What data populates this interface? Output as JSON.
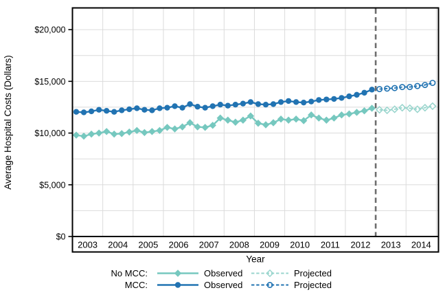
{
  "figure_title": "",
  "chart_data": {
    "type": "line",
    "title": "",
    "xlabel": "Year",
    "ylabel": "Average Hospital Costs (Dollars)",
    "x_categories": [
      "2003",
      "2004",
      "2005",
      "2006",
      "2007",
      "2008",
      "2009",
      "2010",
      "2011",
      "2012",
      "2013",
      "2014"
    ],
    "xlim": [
      2003,
      2015.07
    ],
    "ylim": [
      0,
      22100
    ],
    "y_ticks": [
      {
        "value": 0,
        "label": "$0"
      },
      {
        "value": 5000,
        "label": "$5,000"
      },
      {
        "value": 10000,
        "label": "$10,000"
      },
      {
        "value": 15000,
        "label": "$15,000"
      },
      {
        "value": 20000,
        "label": "$20,000"
      }
    ],
    "y_grid_step": 2500,
    "grid_on": true,
    "forecast_divider_x": 2013,
    "series": [
      {
        "id": "no_mcc_observed",
        "group": "No MCC",
        "phase": "Observed",
        "color": "#76C8BF",
        "line_style": "solid",
        "marker": "diamond",
        "marker_fill": "filled",
        "x": [
          2003.125,
          2003.375,
          2003.625,
          2003.875,
          2004.125,
          2004.375,
          2004.625,
          2004.875,
          2005.125,
          2005.375,
          2005.625,
          2005.875,
          2006.125,
          2006.375,
          2006.625,
          2006.875,
          2007.125,
          2007.375,
          2007.625,
          2007.875,
          2008.125,
          2008.375,
          2008.625,
          2008.875,
          2009.125,
          2009.375,
          2009.625,
          2009.875,
          2010.125,
          2010.375,
          2010.625,
          2010.875,
          2011.125,
          2011.375,
          2011.625,
          2011.875,
          2012.125,
          2012.375,
          2012.625,
          2012.875
        ],
        "y": [
          9800,
          9700,
          9900,
          10000,
          10150,
          9900,
          9950,
          10100,
          10250,
          10050,
          10150,
          10250,
          10550,
          10400,
          10600,
          11000,
          10600,
          10550,
          10750,
          11450,
          11250,
          11050,
          11250,
          11650,
          10950,
          10800,
          11000,
          11350,
          11250,
          11350,
          11200,
          11750,
          11450,
          11250,
          11450,
          11750,
          11850,
          12000,
          12150,
          12400
        ]
      },
      {
        "id": "no_mcc_projected",
        "group": "No MCC",
        "phase": "Projected",
        "color": "#99D5CD",
        "line_style": "dashed",
        "marker": "diamond",
        "marker_fill": "open",
        "x": [
          2013.125,
          2013.375,
          2013.625,
          2013.875,
          2014.125,
          2014.375,
          2014.625,
          2014.875
        ],
        "y": [
          12250,
          12200,
          12300,
          12450,
          12400,
          12300,
          12450,
          12600
        ]
      },
      {
        "id": "mcc_observed",
        "group": "MCC",
        "phase": "Observed",
        "color": "#2173B2",
        "line_style": "solid",
        "marker": "circle",
        "marker_fill": "filled",
        "x": [
          2003.125,
          2003.375,
          2003.625,
          2003.875,
          2004.125,
          2004.375,
          2004.625,
          2004.875,
          2005.125,
          2005.375,
          2005.625,
          2005.875,
          2006.125,
          2006.375,
          2006.625,
          2006.875,
          2007.125,
          2007.375,
          2007.625,
          2007.875,
          2008.125,
          2008.375,
          2008.625,
          2008.875,
          2009.125,
          2009.375,
          2009.625,
          2009.875,
          2010.125,
          2010.375,
          2010.625,
          2010.875,
          2011.125,
          2011.375,
          2011.625,
          2011.875,
          2012.125,
          2012.375,
          2012.625,
          2012.875
        ],
        "y": [
          12050,
          12000,
          12100,
          12250,
          12150,
          12050,
          12200,
          12300,
          12400,
          12250,
          12200,
          12400,
          12450,
          12600,
          12450,
          12800,
          12550,
          12450,
          12600,
          12750,
          12650,
          12750,
          12850,
          13000,
          12800,
          12750,
          12800,
          13000,
          13100,
          13000,
          12950,
          13050,
          13200,
          13250,
          13300,
          13400,
          13550,
          13700,
          13900,
          14200
        ]
      },
      {
        "id": "mcc_projected",
        "group": "MCC",
        "phase": "Projected",
        "color": "#2173B2",
        "line_style": "dashed",
        "marker": "circle",
        "marker_fill": "open",
        "x": [
          2013.125,
          2013.375,
          2013.625,
          2013.875,
          2014.125,
          2014.375,
          2014.625,
          2014.875
        ],
        "y": [
          14250,
          14300,
          14350,
          14450,
          14450,
          14550,
          14650,
          14850
        ]
      }
    ],
    "legend": {
      "position": "bottom-center",
      "rows": [
        {
          "label": "No MCC:",
          "marker": "diamond",
          "observed_color": "#76C8BF",
          "projected_color": "#99D5CD",
          "observed_label": "Observed",
          "projected_label": "Projected"
        },
        {
          "label": "MCC:",
          "marker": "circle",
          "observed_color": "#2173B2",
          "projected_color": "#2173B2",
          "observed_label": "Observed",
          "projected_label": "Projected"
        }
      ]
    },
    "colors": {
      "grid": "#DBDBDB",
      "frame": "#000000",
      "divider": "#6E6E6E",
      "text": "#000000",
      "background": "#FFFFFF"
    }
  }
}
